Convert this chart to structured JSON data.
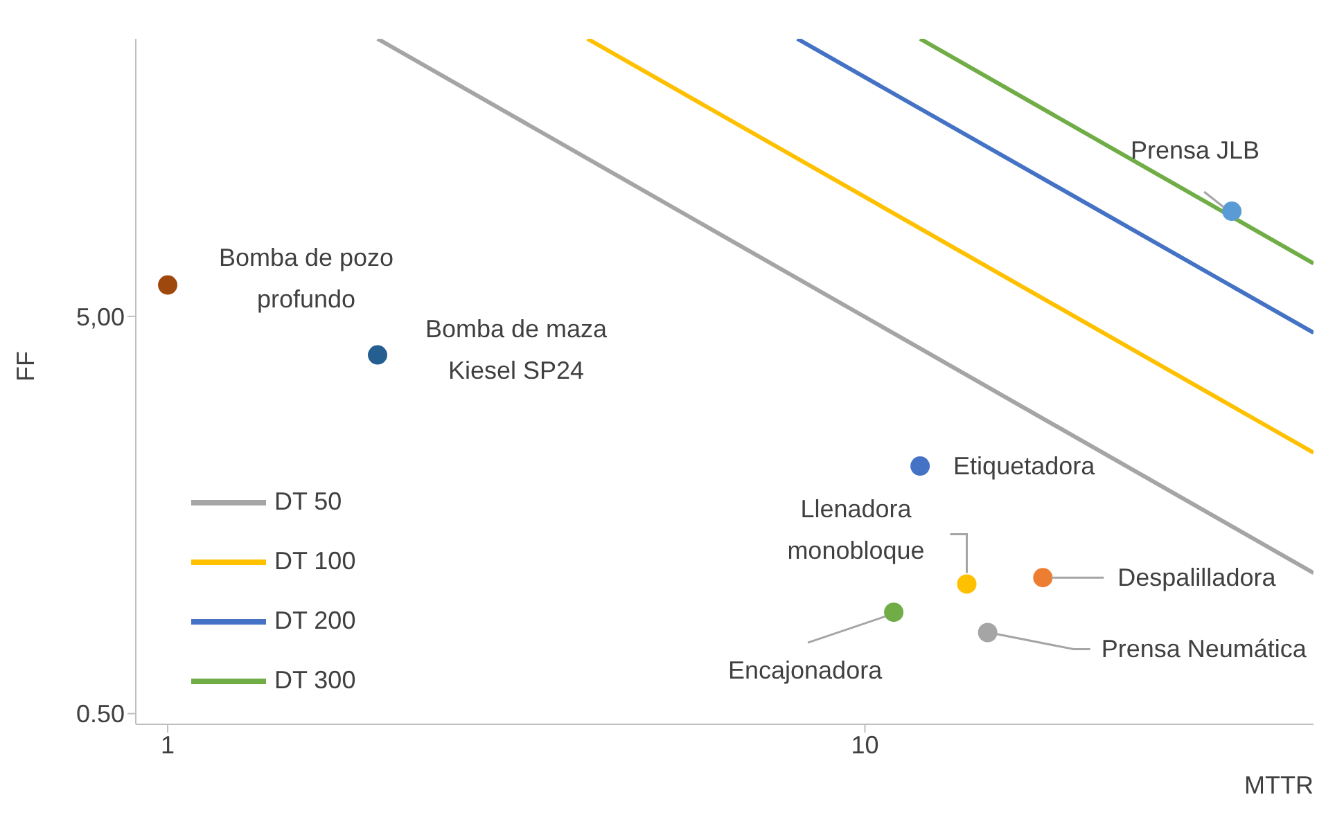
{
  "chart_data": {
    "type": "scatter",
    "xlabel": "MTTR",
    "ylabel": "FF",
    "log": "xy",
    "xlim": [
      0.9,
      44
    ],
    "ylim": [
      0.47,
      25
    ],
    "xticks": [
      1,
      10
    ],
    "yticks": [
      {
        "value": 0.5,
        "label": "0.50"
      },
      {
        "value": 5,
        "label": "5,00"
      }
    ],
    "grid": false,
    "legend": "bottom left",
    "series": [
      {
        "marker": "circle",
        "x": [
          1,
          2,
          12,
          14,
          18,
          11,
          15,
          33.6
        ],
        "values": [
          6,
          4,
          2.1,
          1.06,
          1.1,
          0.9,
          0.8,
          9.2
        ],
        "colors": [
          "#9e480e",
          "#255e91",
          "#4472c4",
          "#ffc000",
          "#ed7d31",
          "#70ad47",
          "#a5a5a5",
          "#5b9bd5"
        ]
      },
      {
        "type": "line",
        "marker": "none",
        "name": "DT 50",
        "color": "#a5a5a5",
        "x": [
          2,
          44
        ],
        "values": [
          25,
          1.13
        ]
      },
      {
        "type": "line",
        "marker": "none",
        "name": "DT 100",
        "color": "#ffc000",
        "x": [
          4,
          44
        ],
        "values": [
          25,
          2.27
        ]
      },
      {
        "type": "line",
        "marker": "none",
        "name": "DT 200",
        "color": "#4472c4",
        "x": [
          8,
          44
        ],
        "values": [
          25,
          4.55
        ]
      },
      {
        "type": "line",
        "marker": "none",
        "name": "DT 300",
        "color": "#70ad47",
        "x": [
          12,
          44
        ],
        "values": [
          25,
          6.8
        ]
      }
    ],
    "annotations": [
      {
        "text": "Bomba de pozo profundo",
        "x": 1,
        "y": 6
      },
      {
        "text": "Bomba de maza Kiesel SP24",
        "x": 2,
        "y": 4
      },
      {
        "text": "Etiquetadora",
        "x": 12,
        "y": 2.1
      },
      {
        "text": "Llenadora monobloque",
        "x": 14,
        "y": 1.06
      },
      {
        "text": "Despalilladora",
        "x": 18,
        "y": 1.1
      },
      {
        "text": "Encajonadora",
        "x": 11,
        "y": 0.9
      },
      {
        "text": "Prensa Neumática",
        "x": 15,
        "y": 0.8
      },
      {
        "text": "Prensa JLB",
        "x": 33.6,
        "y": 9.2
      }
    ]
  }
}
